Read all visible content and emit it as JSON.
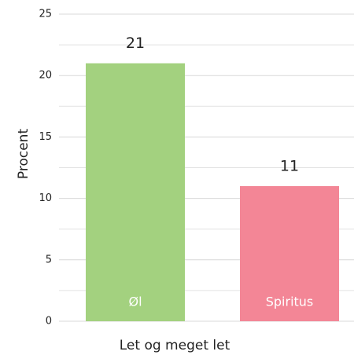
{
  "chart_data": {
    "type": "bar",
    "categories": [
      "Øl",
      "Spiritus"
    ],
    "values": [
      21,
      11
    ],
    "colors": [
      "#a3d17f",
      "#f38696"
    ],
    "xlabel": "Let og meget let",
    "ylabel": "Procent",
    "ylim": [
      0,
      25
    ],
    "yticks": [
      0,
      5,
      10,
      15,
      20,
      25
    ],
    "minor_yticks": [
      2.5,
      7.5,
      12.5,
      17.5,
      22.5
    ],
    "grid": true
  }
}
